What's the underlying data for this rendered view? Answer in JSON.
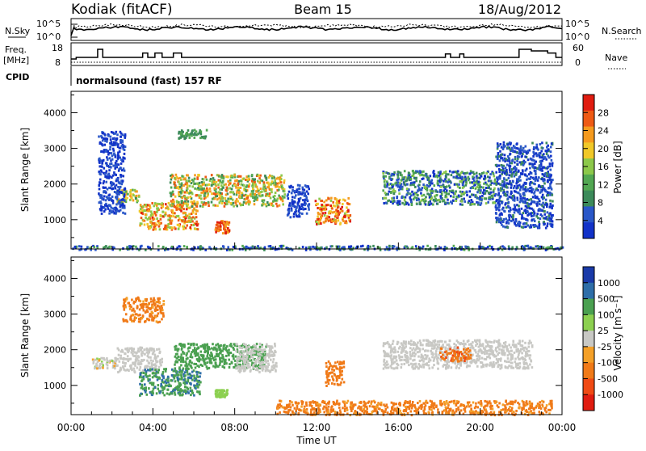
{
  "header": {
    "station": "Kodiak (fitACF)",
    "beam": "Beam 15",
    "date": "18/Aug/2012"
  },
  "noise_panel": {
    "left_label": "N.Sky",
    "right_label": "N.Search",
    "left_ticks": [
      "10^5",
      "10^0"
    ],
    "right_ticks": [
      "10^5",
      "10^0"
    ]
  },
  "freq_panel": {
    "left_label_1": "Freq.",
    "left_label_2": "[MHz]",
    "right_label": "Nave",
    "left_ticks": [
      "18",
      "8"
    ],
    "right_ticks": [
      "60",
      "0"
    ],
    "freq_steps": [
      {
        "t": 0.0,
        "v": 10.5
      },
      {
        "t": 0.25,
        "v": 11.5
      },
      {
        "t": 1.3,
        "v": 16.5
      },
      {
        "t": 1.55,
        "v": 11.5
      },
      {
        "t": 3.5,
        "v": 14.2
      },
      {
        "t": 3.75,
        "v": 11.5
      },
      {
        "t": 4.1,
        "v": 14.2
      },
      {
        "t": 4.45,
        "v": 11.5
      },
      {
        "t": 5.0,
        "v": 14.2
      },
      {
        "t": 5.4,
        "v": 11.5
      },
      {
        "t": 16.6,
        "v": 11.5
      },
      {
        "t": 18.3,
        "v": 13.6
      },
      {
        "t": 18.55,
        "v": 11.5
      },
      {
        "t": 19.0,
        "v": 13.6
      },
      {
        "t": 19.2,
        "v": 11.5
      },
      {
        "t": 21.9,
        "v": 16.5
      },
      {
        "t": 22.5,
        "v": 15.5
      },
      {
        "t": 23.3,
        "v": 14.2
      },
      {
        "t": 23.7,
        "v": 11.5
      },
      {
        "t": 24.0,
        "v": 11.5
      }
    ]
  },
  "cpid": {
    "label": "CPID",
    "value": "normalsound (fast) 157 RF"
  },
  "colors": {
    "power": [
      "#1232c8",
      "#2a57c8",
      "#3c8a5a",
      "#52a752",
      "#8cc84a",
      "#f0c828",
      "#f59a1e",
      "#ee5a14",
      "#e01c10"
    ],
    "velocity": [
      "#e01c10",
      "#f04a14",
      "#f07a18",
      "#f4a028",
      "#c8c8c4",
      "#8cd050",
      "#4aa050",
      "#2e6ea8",
      "#1a3aa8"
    ]
  },
  "power_bar": {
    "label": "Power [dB]",
    "ticks": [
      "28",
      "24",
      "20",
      "16",
      "12",
      "8",
      "4"
    ]
  },
  "velocity_bar": {
    "label": "Velocity [m s⁻¹]",
    "ticks": [
      "1000",
      "500",
      "100",
      "25",
      "-25",
      "-100",
      "-500",
      "-1000"
    ]
  },
  "chart_data": [
    {
      "type": "heatmap",
      "name": "power",
      "xlabel": "",
      "ylabel": "Slant Range [km]",
      "xlim": [
        0,
        24
      ],
      "ylim": [
        180,
        4600
      ],
      "x_ticks": [
        "00:00",
        "04:00",
        "08:00",
        "12:00",
        "16:00",
        "20:00",
        "00:00"
      ],
      "y_ticks": [
        1000,
        2000,
        3000,
        4000
      ],
      "colorbar": "Power [dB]",
      "scatter_regions": [
        {
          "t": [
            2.2,
            3.3
          ],
          "r": [
            1500,
            1900
          ],
          "vals": [
            12,
            26
          ]
        },
        {
          "t": [
            3.3,
            6.2
          ],
          "r": [
            750,
            1500
          ],
          "vals": [
            16,
            30
          ]
        },
        {
          "t": [
            4.8,
            10.4
          ],
          "r": [
            1400,
            2300
          ],
          "vals": [
            10,
            28
          ]
        },
        {
          "t": [
            7.0,
            7.7
          ],
          "r": [
            650,
            1000
          ],
          "vals": [
            24,
            32
          ]
        },
        {
          "t": [
            11.9,
            13.6
          ],
          "r": [
            900,
            1650
          ],
          "vals": [
            18,
            32
          ]
        },
        {
          "t": [
            15.2,
            20.7
          ],
          "r": [
            1450,
            2400
          ],
          "vals": [
            2,
            18
          ]
        },
        {
          "t": [
            5.2,
            6.6
          ],
          "r": [
            3300,
            3550
          ],
          "vals": [
            10,
            14
          ]
        },
        {
          "t": [
            0.0,
            24.0
          ],
          "r": [
            180,
            300
          ],
          "vals": [
            2,
            14
          ]
        },
        {
          "t": [
            1.3,
            2.6
          ],
          "r": [
            1200,
            3500
          ],
          "vals": [
            2,
            8
          ]
        },
        {
          "t": [
            10.5,
            11.6
          ],
          "r": [
            1100,
            2000
          ],
          "vals": [
            2,
            8
          ]
        },
        {
          "t": [
            20.7,
            23.5
          ],
          "r": [
            800,
            3200
          ],
          "vals": [
            2,
            10
          ]
        }
      ]
    },
    {
      "type": "heatmap",
      "name": "velocity",
      "xlabel": "Time UT",
      "ylabel": "Slant Range [km]",
      "xlim": [
        0,
        24
      ],
      "ylim": [
        180,
        4600
      ],
      "x_ticks": [
        "00:00",
        "04:00",
        "08:00",
        "12:00",
        "16:00",
        "20:00",
        "00:00"
      ],
      "y_ticks": [
        1000,
        2000,
        3000,
        4000
      ],
      "colorbar": "Velocity [m s⁻¹]",
      "scatter_regions": [
        {
          "t": [
            1.0,
            2.2
          ],
          "r": [
            1500,
            1800
          ],
          "vals": [
            -30,
            30
          ]
        },
        {
          "t": [
            2.2,
            4.4
          ],
          "r": [
            1400,
            2100
          ],
          "vals": [
            -20,
            20
          ]
        },
        {
          "t": [
            3.3,
            6.3
          ],
          "r": [
            750,
            1500
          ],
          "vals": [
            150,
            700
          ]
        },
        {
          "t": [
            5.0,
            9.5
          ],
          "r": [
            1500,
            2200
          ],
          "vals": [
            100,
            400
          ]
        },
        {
          "t": [
            8.0,
            10.0
          ],
          "r": [
            1400,
            2200
          ],
          "vals": [
            -20,
            20
          ]
        },
        {
          "t": [
            7.0,
            7.6
          ],
          "r": [
            700,
            900
          ],
          "vals": [
            30,
            90
          ]
        },
        {
          "t": [
            12.4,
            13.3
          ],
          "r": [
            1000,
            1700
          ],
          "vals": [
            -200,
            -120
          ]
        },
        {
          "t": [
            15.2,
            22.5
          ],
          "r": [
            1500,
            2300
          ],
          "vals": [
            -20,
            20
          ]
        },
        {
          "t": [
            18.0,
            19.5
          ],
          "r": [
            1700,
            2100
          ],
          "vals": [
            -600,
            -150
          ]
        },
        {
          "t": [
            10.0,
            23.5
          ],
          "r": [
            200,
            600
          ],
          "vals": [
            -300,
            -60
          ]
        },
        {
          "t": [
            2.5,
            4.5
          ],
          "r": [
            2800,
            3500
          ],
          "vals": [
            -300,
            -60
          ]
        }
      ]
    }
  ]
}
